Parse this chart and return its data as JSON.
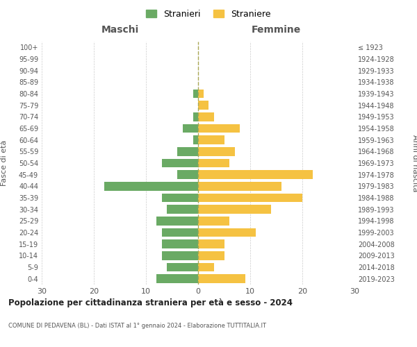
{
  "age_groups": [
    "0-4",
    "5-9",
    "10-14",
    "15-19",
    "20-24",
    "25-29",
    "30-34",
    "35-39",
    "40-44",
    "45-49",
    "50-54",
    "55-59",
    "60-64",
    "65-69",
    "70-74",
    "75-79",
    "80-84",
    "85-89",
    "90-94",
    "95-99",
    "100+"
  ],
  "birth_years": [
    "2019-2023",
    "2014-2018",
    "2009-2013",
    "2004-2008",
    "1999-2003",
    "1994-1998",
    "1989-1993",
    "1984-1988",
    "1979-1983",
    "1974-1978",
    "1969-1973",
    "1964-1968",
    "1959-1963",
    "1954-1958",
    "1949-1953",
    "1944-1948",
    "1939-1943",
    "1934-1938",
    "1929-1933",
    "1924-1928",
    "≤ 1923"
  ],
  "maschi": [
    8,
    6,
    7,
    7,
    7,
    8,
    6,
    7,
    18,
    4,
    7,
    4,
    1,
    3,
    1,
    0,
    1,
    0,
    0,
    0,
    0
  ],
  "femmine": [
    9,
    3,
    5,
    5,
    11,
    6,
    14,
    20,
    16,
    22,
    6,
    7,
    5,
    8,
    3,
    2,
    1,
    0,
    0,
    0,
    0
  ],
  "maschi_color": "#6aaa64",
  "femmine_color": "#f5c242",
  "title": "Popolazione per cittadinanza straniera per età e sesso - 2024",
  "subtitle": "COMUNE DI PEDAVENA (BL) - Dati ISTAT al 1° gennaio 2024 - Elaborazione TUTTITALIA.IT",
  "legend_maschi": "Stranieri",
  "legend_femmine": "Straniere",
  "xlabel_left": "Maschi",
  "xlabel_right": "Femmine",
  "ylabel_left": "Fasce di età",
  "ylabel_right": "Anni di nascita",
  "xlim": 30,
  "background_color": "#ffffff",
  "grid_color": "#cccccc"
}
